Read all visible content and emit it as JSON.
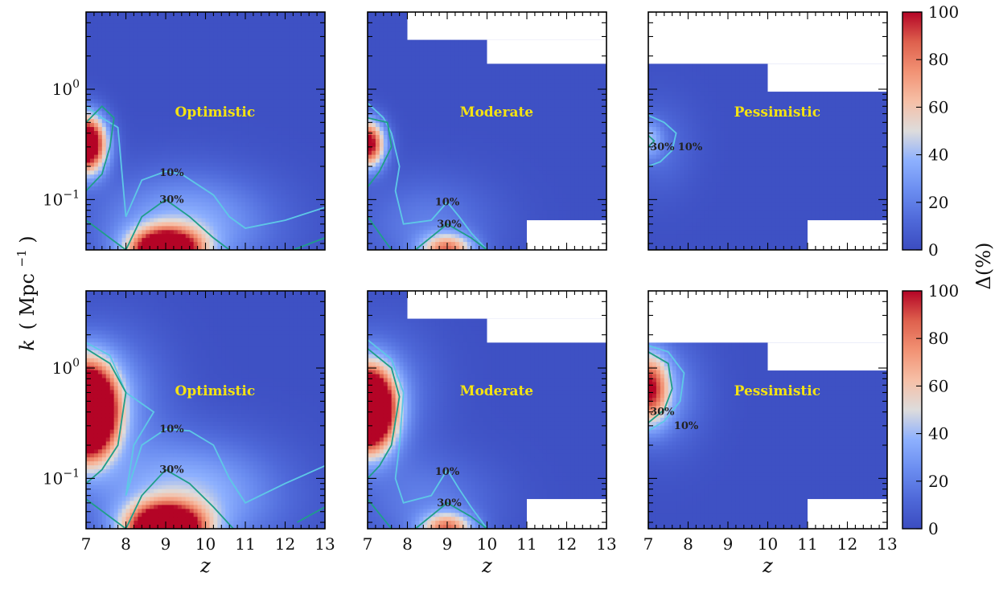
{
  "chart_data": {
    "type": "heatmap",
    "grid": {
      "rows": 2,
      "cols": 3
    },
    "x_label_var": "z",
    "y_label_var": "k",
    "y_label_unit": "( Mpc",
    "y_label_exp": "−1",
    "y_label_close": ")",
    "colorbar_label": "Δ(%)",
    "xlim": [
      7,
      13
    ],
    "ylim": [
      0.035,
      5.0
    ],
    "yscale": "log",
    "x_ticks": [
      7,
      8,
      9,
      10,
      11,
      12,
      13
    ],
    "x_tick_labels": [
      "7",
      "8",
      "9",
      "10",
      "11",
      "12",
      "13"
    ],
    "y_ticks": [
      {
        "value": 0.1,
        "base": "10",
        "exp": "−1"
      },
      {
        "value": 1.0,
        "base": "10",
        "exp": "0"
      }
    ],
    "colorbar_range": [
      0,
      100
    ],
    "colorbar_ticks": [
      0,
      20,
      40,
      60,
      80,
      100
    ],
    "colorbar_tick_labels": [
      "0",
      "20",
      "40",
      "60",
      "80",
      "100"
    ],
    "colormap": "coolwarm",
    "colors": {
      "low": "#3b4cc0",
      "mid": "#dddcdc",
      "high": "#b40426",
      "panel_label": "#f4e312",
      "contour_10": "#5ec8e6",
      "contour_30": "#1f9e89"
    },
    "contour_levels": [
      10,
      30
    ],
    "contour_labels": [
      "10%",
      "30%"
    ],
    "panels": [
      {
        "row": 0,
        "col": 0,
        "label": "Optimistic",
        "blanks": [],
        "blobs": [
          {
            "z": 7.0,
            "k": 0.32,
            "amp": 140,
            "sz": 0.35,
            "sk": 0.18
          },
          {
            "z": 9.0,
            "k": 0.035,
            "amp": 140,
            "sz": 0.6,
            "sk": 0.13
          },
          {
            "z": 9.5,
            "k": 0.06,
            "amp": 35,
            "sz": 1.5,
            "sk": 0.32
          }
        ],
        "contour_10": [
          [
            7,
            0.7
          ],
          [
            7.4,
            0.55
          ],
          [
            7.8,
            0.45
          ],
          [
            8.0,
            0.07
          ],
          [
            8.4,
            0.15
          ],
          [
            9.0,
            0.18
          ],
          [
            9.4,
            0.17
          ],
          [
            10.2,
            0.11
          ],
          [
            10.6,
            0.07
          ],
          [
            11.0,
            0.055
          ],
          [
            12.0,
            0.065
          ],
          [
            13,
            0.085
          ]
        ],
        "contour_30": [
          [
            7,
            0.12
          ],
          [
            7.4,
            0.17
          ],
          [
            7.6,
            0.3
          ],
          [
            7.7,
            0.55
          ],
          [
            7.4,
            0.7
          ],
          [
            7,
            0.5
          ]
        ],
        "contour_30b": [
          [
            7,
            0.065
          ],
          [
            8.0,
            0.035
          ],
          [
            8.4,
            0.07
          ],
          [
            9.0,
            0.1
          ],
          [
            9.6,
            0.07
          ],
          [
            10.2,
            0.045
          ],
          [
            10.6,
            0.035
          ]
        ],
        "contour_30c": [
          [
            12.2,
            0.035
          ],
          [
            13,
            0.045
          ]
        ],
        "labels": [
          {
            "text": "10%",
            "z": 9.15,
            "k": 0.175
          },
          {
            "text": "30%",
            "z": 9.15,
            "k": 0.1
          }
        ]
      },
      {
        "row": 0,
        "col": 1,
        "label": "Moderate",
        "blanks": [
          {
            "z0": 8.0,
            "z1": 13.0,
            "k0": 2.8,
            "k1": 5.0
          },
          {
            "z0": 10.0,
            "z1": 13.0,
            "k0": 1.7,
            "k1": 2.8
          },
          {
            "z0": 11.0,
            "z1": 13.0,
            "k0": 0.035,
            "k1": 0.065
          }
        ],
        "blobs": [
          {
            "z": 7.0,
            "k": 0.32,
            "amp": 110,
            "sz": 0.3,
            "sk": 0.15
          },
          {
            "z": 9.0,
            "k": 0.035,
            "amp": 70,
            "sz": 0.45,
            "sk": 0.1
          },
          {
            "z": 8.5,
            "k": 0.06,
            "amp": 18,
            "sz": 1.2,
            "sk": 0.3
          }
        ],
        "contour_10": [
          [
            7,
            0.75
          ],
          [
            7.4,
            0.55
          ],
          [
            7.6,
            0.4
          ],
          [
            7.8,
            0.2
          ],
          [
            7.7,
            0.12
          ],
          [
            7.9,
            0.06
          ],
          [
            8.6,
            0.065
          ],
          [
            9.0,
            0.095
          ],
          [
            9.3,
            0.07
          ],
          [
            9.6,
            0.05
          ],
          [
            10.0,
            0.035
          ]
        ],
        "contour_30": [
          [
            7,
            0.13
          ],
          [
            7.3,
            0.18
          ],
          [
            7.6,
            0.3
          ],
          [
            7.5,
            0.5
          ],
          [
            7,
            0.55
          ]
        ],
        "contour_30b": [
          [
            7,
            0.07
          ],
          [
            7.6,
            0.035
          ]
        ],
        "contour_30c": [
          [
            8.2,
            0.035
          ],
          [
            9.0,
            0.06
          ],
          [
            9.6,
            0.045
          ],
          [
            10.0,
            0.035
          ]
        ],
        "labels": [
          {
            "text": "10%",
            "z": 9.0,
            "k": 0.095
          },
          {
            "text": "30%",
            "z": 9.05,
            "k": 0.06
          }
        ]
      },
      {
        "row": 0,
        "col": 2,
        "label": "Pessimistic",
        "blanks": [
          {
            "z0": 7.0,
            "z1": 13.0,
            "k0": 1.7,
            "k1": 5.0
          },
          {
            "z0": 10.0,
            "z1": 13.0,
            "k0": 0.95,
            "k1": 1.7
          },
          {
            "z0": 11.0,
            "z1": 13.0,
            "k0": 0.035,
            "k1": 0.065
          }
        ],
        "blobs": [
          {
            "z": 7.0,
            "k": 0.35,
            "amp": 30,
            "sz": 0.25,
            "sk": 0.12
          },
          {
            "z": 7.3,
            "k": 0.3,
            "amp": 12,
            "sz": 0.6,
            "sk": 0.3
          }
        ],
        "contour_10": [
          [
            7,
            0.58
          ],
          [
            7.4,
            0.5
          ],
          [
            7.7,
            0.4
          ],
          [
            7.6,
            0.28
          ],
          [
            7.3,
            0.22
          ],
          [
            7,
            0.2
          ]
        ],
        "contour_30": [
          [
            7,
            0.38
          ],
          [
            7.15,
            0.34
          ],
          [
            7,
            0.3
          ]
        ],
        "contour_30b": [],
        "contour_30c": [],
        "labels": [
          {
            "text": "30%",
            "z": 7.35,
            "k": 0.3
          },
          {
            "text": "10%",
            "z": 8.05,
            "k": 0.3
          }
        ]
      },
      {
        "row": 1,
        "col": 0,
        "label": "Optimistic",
        "blanks": [],
        "blobs": [
          {
            "z": 7.0,
            "k": 0.4,
            "amp": 200,
            "sz": 0.5,
            "sk": 0.28
          },
          {
            "z": 9.0,
            "k": 0.035,
            "amp": 150,
            "sz": 0.65,
            "sk": 0.15
          },
          {
            "z": 9.5,
            "k": 0.07,
            "amp": 40,
            "sz": 1.6,
            "sk": 0.35
          },
          {
            "z": 7.5,
            "k": 0.6,
            "amp": 25,
            "sz": 1.0,
            "sk": 0.4
          }
        ],
        "contour_10": [
          [
            7,
            1.7
          ],
          [
            7.6,
            1.3
          ],
          [
            8.0,
            0.6
          ],
          [
            8.7,
            0.4
          ],
          [
            8.2,
            0.2
          ],
          [
            8.0,
            0.07
          ],
          [
            8.4,
            0.2
          ],
          [
            9.0,
            0.28
          ],
          [
            9.6,
            0.27
          ],
          [
            10.2,
            0.2
          ],
          [
            10.6,
            0.1
          ],
          [
            11.0,
            0.06
          ],
          [
            12.0,
            0.09
          ],
          [
            13,
            0.13
          ]
        ],
        "contour_30": [
          [
            7,
            1.5
          ],
          [
            7.6,
            1.1
          ],
          [
            8.0,
            0.6
          ],
          [
            7.8,
            0.2
          ],
          [
            7.4,
            0.12
          ],
          [
            7,
            0.09
          ]
        ],
        "contour_30b": [
          [
            7,
            0.065
          ],
          [
            8.0,
            0.035
          ],
          [
            8.4,
            0.07
          ],
          [
            9.0,
            0.12
          ],
          [
            9.6,
            0.09
          ],
          [
            10.2,
            0.055
          ],
          [
            10.7,
            0.035
          ]
        ],
        "contour_30c": [
          [
            12.3,
            0.04
          ],
          [
            13,
            0.055
          ]
        ],
        "labels": [
          {
            "text": "10%",
            "z": 9.15,
            "k": 0.28
          },
          {
            "text": "30%",
            "z": 9.15,
            "k": 0.12
          }
        ]
      },
      {
        "row": 1,
        "col": 1,
        "label": "Moderate",
        "blanks": [
          {
            "z0": 8.0,
            "z1": 13.0,
            "k0": 2.8,
            "k1": 5.0
          },
          {
            "z0": 10.0,
            "z1": 13.0,
            "k0": 1.7,
            "k1": 2.8
          },
          {
            "z0": 11.0,
            "z1": 13.0,
            "k0": 0.035,
            "k1": 0.065
          }
        ],
        "blobs": [
          {
            "z": 7.0,
            "k": 0.42,
            "amp": 190,
            "sz": 0.45,
            "sk": 0.25
          },
          {
            "z": 9.0,
            "k": 0.035,
            "amp": 70,
            "sz": 0.45,
            "sk": 0.1
          },
          {
            "z": 8.5,
            "k": 0.06,
            "amp": 18,
            "sz": 1.2,
            "sk": 0.3
          },
          {
            "z": 7.4,
            "k": 0.6,
            "amp": 20,
            "sz": 0.9,
            "sk": 0.4
          }
        ],
        "contour_10": [
          [
            7,
            1.8
          ],
          [
            7.6,
            1.2
          ],
          [
            7.9,
            0.6
          ],
          [
            7.8,
            0.2
          ],
          [
            7.7,
            0.1
          ],
          [
            7.9,
            0.06
          ],
          [
            8.6,
            0.07
          ],
          [
            9.0,
            0.12
          ],
          [
            9.3,
            0.08
          ],
          [
            9.6,
            0.055
          ],
          [
            10.0,
            0.035
          ]
        ],
        "contour_30": [
          [
            7,
            1.5
          ],
          [
            7.6,
            1.0
          ],
          [
            7.8,
            0.55
          ],
          [
            7.6,
            0.2
          ],
          [
            7.3,
            0.13
          ],
          [
            7,
            0.1
          ]
        ],
        "contour_30b": [
          [
            7,
            0.065
          ],
          [
            7.6,
            0.035
          ]
        ],
        "contour_30c": [
          [
            8.2,
            0.035
          ],
          [
            9.0,
            0.06
          ],
          [
            9.6,
            0.045
          ],
          [
            10.0,
            0.035
          ]
        ],
        "labels": [
          {
            "text": "10%",
            "z": 9.0,
            "k": 0.115
          },
          {
            "text": "30%",
            "z": 9.05,
            "k": 0.06
          }
        ]
      },
      {
        "row": 1,
        "col": 2,
        "label": "Pessimistic",
        "blanks": [
          {
            "z0": 7.0,
            "z1": 13.0,
            "k0": 1.7,
            "k1": 5.0
          },
          {
            "z0": 10.0,
            "z1": 13.0,
            "k0": 0.95,
            "k1": 1.7
          },
          {
            "z0": 11.0,
            "z1": 13.0,
            "k0": 0.035,
            "k1": 0.065
          }
        ],
        "blobs": [
          {
            "z": 7.0,
            "k": 0.65,
            "amp": 85,
            "sz": 0.35,
            "sk": 0.22
          },
          {
            "z": 7.4,
            "k": 0.6,
            "amp": 22,
            "sz": 0.7,
            "sk": 0.35
          }
        ],
        "contour_10": [
          [
            7,
            1.6
          ],
          [
            7.5,
            1.4
          ],
          [
            7.9,
            0.9
          ],
          [
            7.8,
            0.5
          ],
          [
            7.4,
            0.33
          ],
          [
            7,
            0.27
          ]
        ],
        "contour_30": [
          [
            7,
            1.4
          ],
          [
            7.5,
            1.1
          ],
          [
            7.6,
            0.65
          ],
          [
            7.4,
            0.42
          ],
          [
            7,
            0.32
          ]
        ],
        "contour_30b": [],
        "contour_30c": [],
        "labels": [
          {
            "text": "30%",
            "z": 7.35,
            "k": 0.4
          },
          {
            "text": "10%",
            "z": 7.95,
            "k": 0.3
          }
        ]
      }
    ]
  }
}
